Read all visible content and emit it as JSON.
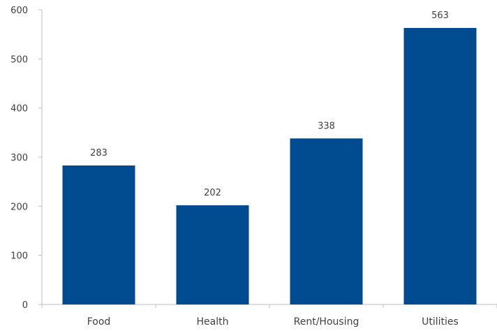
{
  "chart_data": {
    "type": "bar",
    "title": "",
    "xlabel": "",
    "ylabel": "",
    "categories": [
      "Food",
      "Health",
      "Rent/Housing",
      "Utilities"
    ],
    "values": [
      283,
      202,
      338,
      563
    ],
    "data_labels": [
      "283",
      "202",
      "338",
      "563"
    ],
    "ylim": [
      0,
      600
    ],
    "yticks": [
      0,
      100,
      200,
      300,
      400,
      500,
      600
    ],
    "ytick_labels": [
      "0",
      "100",
      "200",
      "300",
      "400",
      "500",
      "600"
    ],
    "grid": false,
    "legend": "none",
    "bar_color": "#004a8f"
  }
}
